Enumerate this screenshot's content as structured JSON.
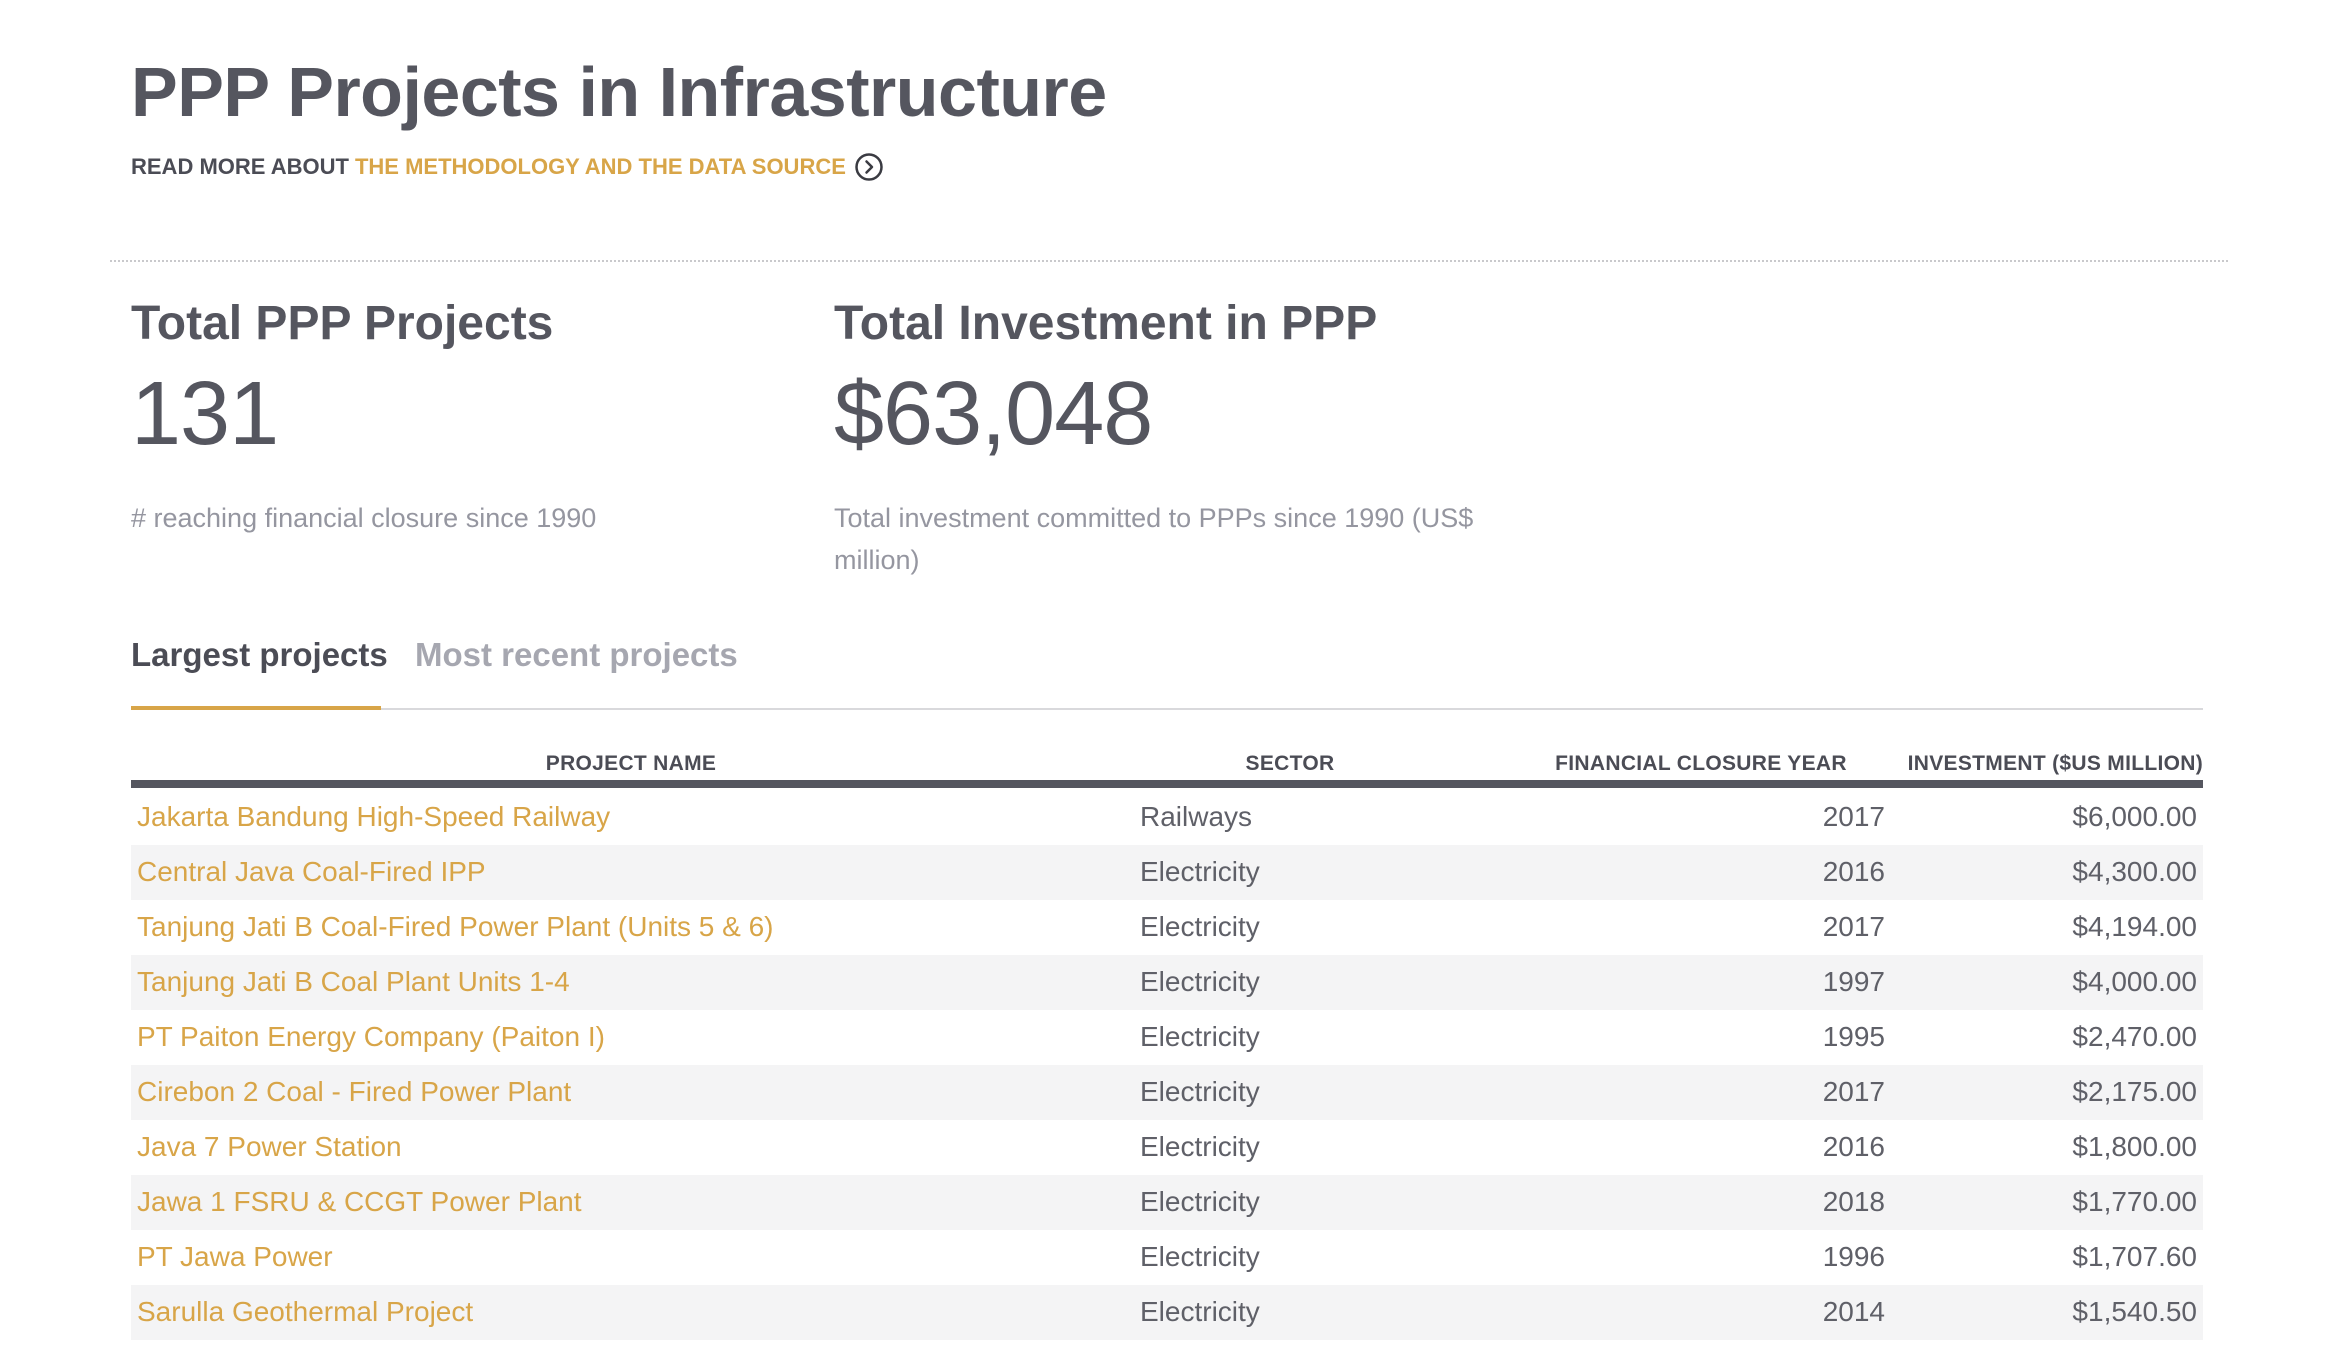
{
  "header": {
    "title": "PPP Projects in Infrastructure",
    "read_more_prefix": "READ MORE ABOUT",
    "read_more_link": "THE METHODOLOGY AND THE DATA SOURCE",
    "read_more_icon": "chevron-right-circle-icon"
  },
  "stats": {
    "projects": {
      "heading": "Total PPP Projects",
      "value": "131",
      "description": "# reaching financial closure since 1990"
    },
    "investment": {
      "heading": "Total Investment in PPP",
      "value": "$63,048",
      "description": "Total investment committed to PPPs since 1990 (US$ million)"
    }
  },
  "tabs": {
    "largest": "Largest projects",
    "recent": "Most recent projects",
    "active": "largest"
  },
  "table": {
    "columns": {
      "name": "PROJECT NAME",
      "sector": "SECTOR",
      "year": "FINANCIAL CLOSURE YEAR",
      "investment": "INVESTMENT ($US MILLION)"
    },
    "rows": [
      {
        "name": "Jakarta Bandung High-Speed Railway",
        "sector": "Railways",
        "year": "2017",
        "investment": "$6,000.00"
      },
      {
        "name": "Central Java Coal-Fired IPP",
        "sector": "Electricity",
        "year": "2016",
        "investment": "$4,300.00"
      },
      {
        "name": "Tanjung Jati B Coal-Fired Power Plant (Units 5 & 6)",
        "sector": "Electricity",
        "year": "2017",
        "investment": "$4,194.00"
      },
      {
        "name": "Tanjung Jati B Coal Plant Units 1-4",
        "sector": "Electricity",
        "year": "1997",
        "investment": "$4,000.00"
      },
      {
        "name": "PT Paiton Energy Company (Paiton I)",
        "sector": "Electricity",
        "year": "1995",
        "investment": "$2,470.00"
      },
      {
        "name": "Cirebon 2 Coal - Fired Power Plant",
        "sector": "Electricity",
        "year": "2017",
        "investment": "$2,175.00"
      },
      {
        "name": "Java 7 Power Station",
        "sector": "Electricity",
        "year": "2016",
        "investment": "$1,800.00"
      },
      {
        "name": "Jawa 1 FSRU & CCGT Power Plant",
        "sector": "Electricity",
        "year": "2018",
        "investment": "$1,770.00"
      },
      {
        "name": "PT Jawa Power",
        "sector": "Electricity",
        "year": "1996",
        "investment": "$1,707.60"
      },
      {
        "name": "Sarulla Geothermal Project",
        "sector": "Electricity",
        "year": "2014",
        "investment": "$1,540.50"
      }
    ]
  },
  "colors": {
    "accent": "#d8a548",
    "text_dark": "#55565f",
    "text_muted": "#9596a0",
    "row_alt": "#f4f4f5"
  }
}
